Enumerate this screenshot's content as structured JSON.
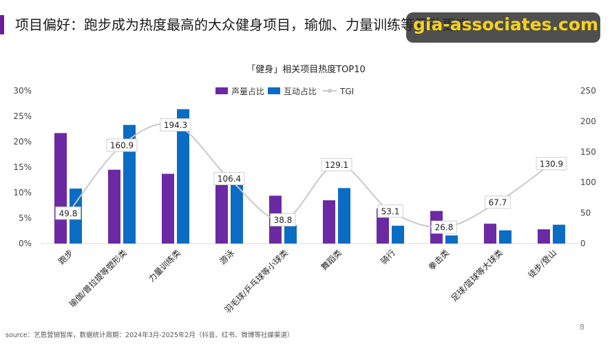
{
  "page": {
    "title": "项目偏好：跑步成为热度最高的大众健身项目，瑜伽、力量训练等互动更高",
    "watermark": "gia-associates.com",
    "source": "source：艺恩营销智库，数据统计周期：2024年3月-2025年2月（抖音、红书、微博等社媒渠道）",
    "page_number": "8"
  },
  "colors": {
    "accent": "#6a1f9a",
    "series_volume": "#6b2aa3",
    "series_interaction": "#0b6cc4",
    "series_tgi": "#c9c9c9"
  },
  "chart_data": {
    "type": "bar",
    "title": "「健身」相关项目热度TOP10",
    "categories": [
      "跑步",
      "瑜伽/普拉提等塑形类",
      "力量训练类",
      "游泳",
      "羽毛球/乒乓球等小球类",
      "舞蹈类",
      "骑行",
      "拳击类",
      "足球/篮球等大球类",
      "徒步/登山"
    ],
    "series": [
      {
        "name": "声量占比",
        "axis": "left",
        "values": [
          21.7,
          14.5,
          13.7,
          11.7,
          9.4,
          8.5,
          6.9,
          6.4,
          3.9,
          2.8
        ]
      },
      {
        "name": "互动占比",
        "axis": "left",
        "values": [
          10.8,
          23.3,
          26.4,
          11.6,
          3.6,
          10.9,
          3.5,
          1.6,
          2.6,
          3.7
        ]
      },
      {
        "name": "TGI",
        "type": "line",
        "axis": "right",
        "values": [
          49.8,
          160.9,
          194.3,
          106.4,
          38.8,
          129.1,
          53.1,
          26.8,
          67.7,
          130.9
        ]
      }
    ],
    "tgi_labels": [
      "49.8",
      "160.9",
      "194.3",
      "106.4",
      "38.8",
      "129.1",
      "53.1",
      "26.8",
      "67.7",
      "130.9"
    ],
    "y_left": {
      "range": [
        0,
        30
      ],
      "ticks": [
        "0%",
        "5%",
        "10%",
        "15%",
        "20%",
        "25%",
        "30%"
      ]
    },
    "y_right": {
      "range": [
        0,
        250
      ],
      "ticks": [
        "0",
        "50",
        "100",
        "150",
        "200",
        "250"
      ]
    },
    "legend": {
      "position": "top-center",
      "items": [
        "声量占比",
        "互动占比",
        "TGI"
      ]
    },
    "grid": false
  }
}
